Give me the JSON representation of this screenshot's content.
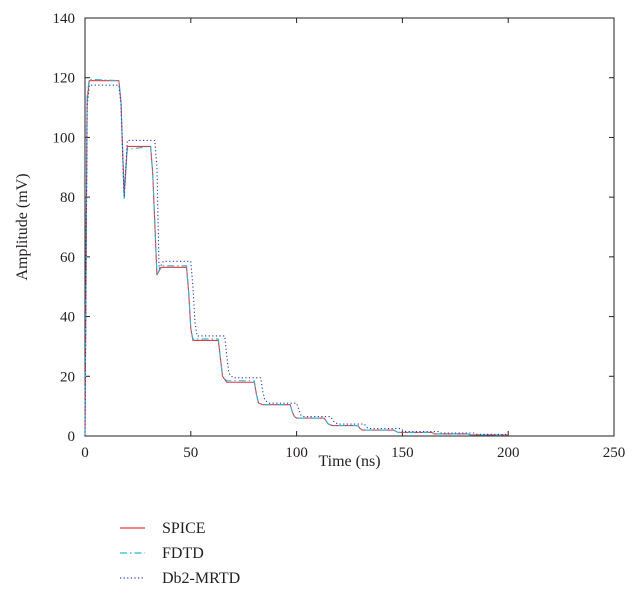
{
  "chart_data": {
    "type": "line",
    "title": "",
    "xlabel": "Time (ns)",
    "ylabel": "Amplitude (mV)",
    "xlim": [
      0,
      250
    ],
    "ylim": [
      0,
      140
    ],
    "xticks": [
      0,
      50,
      100,
      150,
      200,
      250
    ],
    "yticks": [
      0,
      20,
      40,
      60,
      80,
      100,
      120,
      140
    ],
    "grid": false,
    "legend_position": "below",
    "series": [
      {
        "name": "SPICE",
        "color": "#e8353f",
        "style": "solid",
        "x": [
          0,
          1,
          2,
          16,
          17,
          18.5,
          20,
          31,
          32,
          34,
          36,
          48,
          49,
          50,
          51,
          63,
          64,
          65,
          67,
          80,
          81,
          82,
          84,
          97,
          98,
          99,
          100,
          113,
          114,
          115,
          117,
          129,
          130,
          131,
          146,
          147,
          148,
          164,
          165,
          181,
          182,
          200
        ],
        "y": [
          0,
          112,
          119,
          119,
          112,
          81,
          97,
          97,
          88,
          54,
          56.5,
          56.5,
          48,
          36,
          32,
          32,
          26,
          20,
          18,
          18,
          14,
          11,
          10.5,
          10.5,
          8,
          6.5,
          6,
          6,
          5,
          4,
          3.5,
          3.5,
          2.5,
          2,
          2,
          1.5,
          1.2,
          1.2,
          0.7,
          0.7,
          0.4,
          0.3
        ]
      },
      {
        "name": "FDTD",
        "color": "#2bb5d8",
        "style": "dashdot",
        "x": [
          0,
          1,
          2,
          16,
          17,
          18.5,
          20,
          31,
          32,
          34,
          36,
          48,
          49,
          50,
          51,
          63,
          64,
          65,
          67,
          80,
          81,
          82,
          84,
          97,
          98,
          99,
          100,
          113,
          114,
          115,
          117,
          129,
          130,
          131,
          146,
          147,
          148,
          164,
          165,
          181,
          182,
          200
        ],
        "y": [
          0,
          114,
          119.5,
          119,
          112,
          79,
          96,
          97,
          88,
          54,
          57,
          57,
          48,
          36,
          32.5,
          32.5,
          26,
          20,
          18.5,
          18.5,
          14,
          11,
          10.5,
          10.5,
          8,
          6.5,
          6,
          6,
          5,
          4,
          3.5,
          3.5,
          2.5,
          2,
          2,
          1.5,
          1.2,
          1.2,
          0.7,
          0.7,
          0.4,
          0.3
        ]
      },
      {
        "name": "Db2-MRTD",
        "color": "#1f3fae",
        "style": "dotted",
        "x": [
          0,
          1,
          2,
          16,
          17,
          18.5,
          20,
          33,
          34,
          35,
          37,
          50,
          51,
          52,
          53,
          66,
          67,
          68,
          70,
          83,
          84,
          85,
          87,
          100,
          101,
          102,
          103,
          116,
          117,
          118,
          120,
          132,
          133,
          134,
          149,
          150,
          151,
          167,
          168,
          184,
          185,
          200
        ],
        "y": [
          0,
          110,
          117.5,
          117.5,
          111,
          80,
          99,
          99,
          90,
          56,
          58.5,
          58.5,
          50,
          38,
          33.5,
          33.5,
          27,
          21,
          19.5,
          19.5,
          15,
          12,
          11,
          11,
          9,
          7,
          6.5,
          6.5,
          5.5,
          4.5,
          4,
          4,
          3,
          2.5,
          2.5,
          2,
          1.5,
          1.5,
          1,
          1,
          0.6,
          0.5
        ]
      }
    ]
  }
}
